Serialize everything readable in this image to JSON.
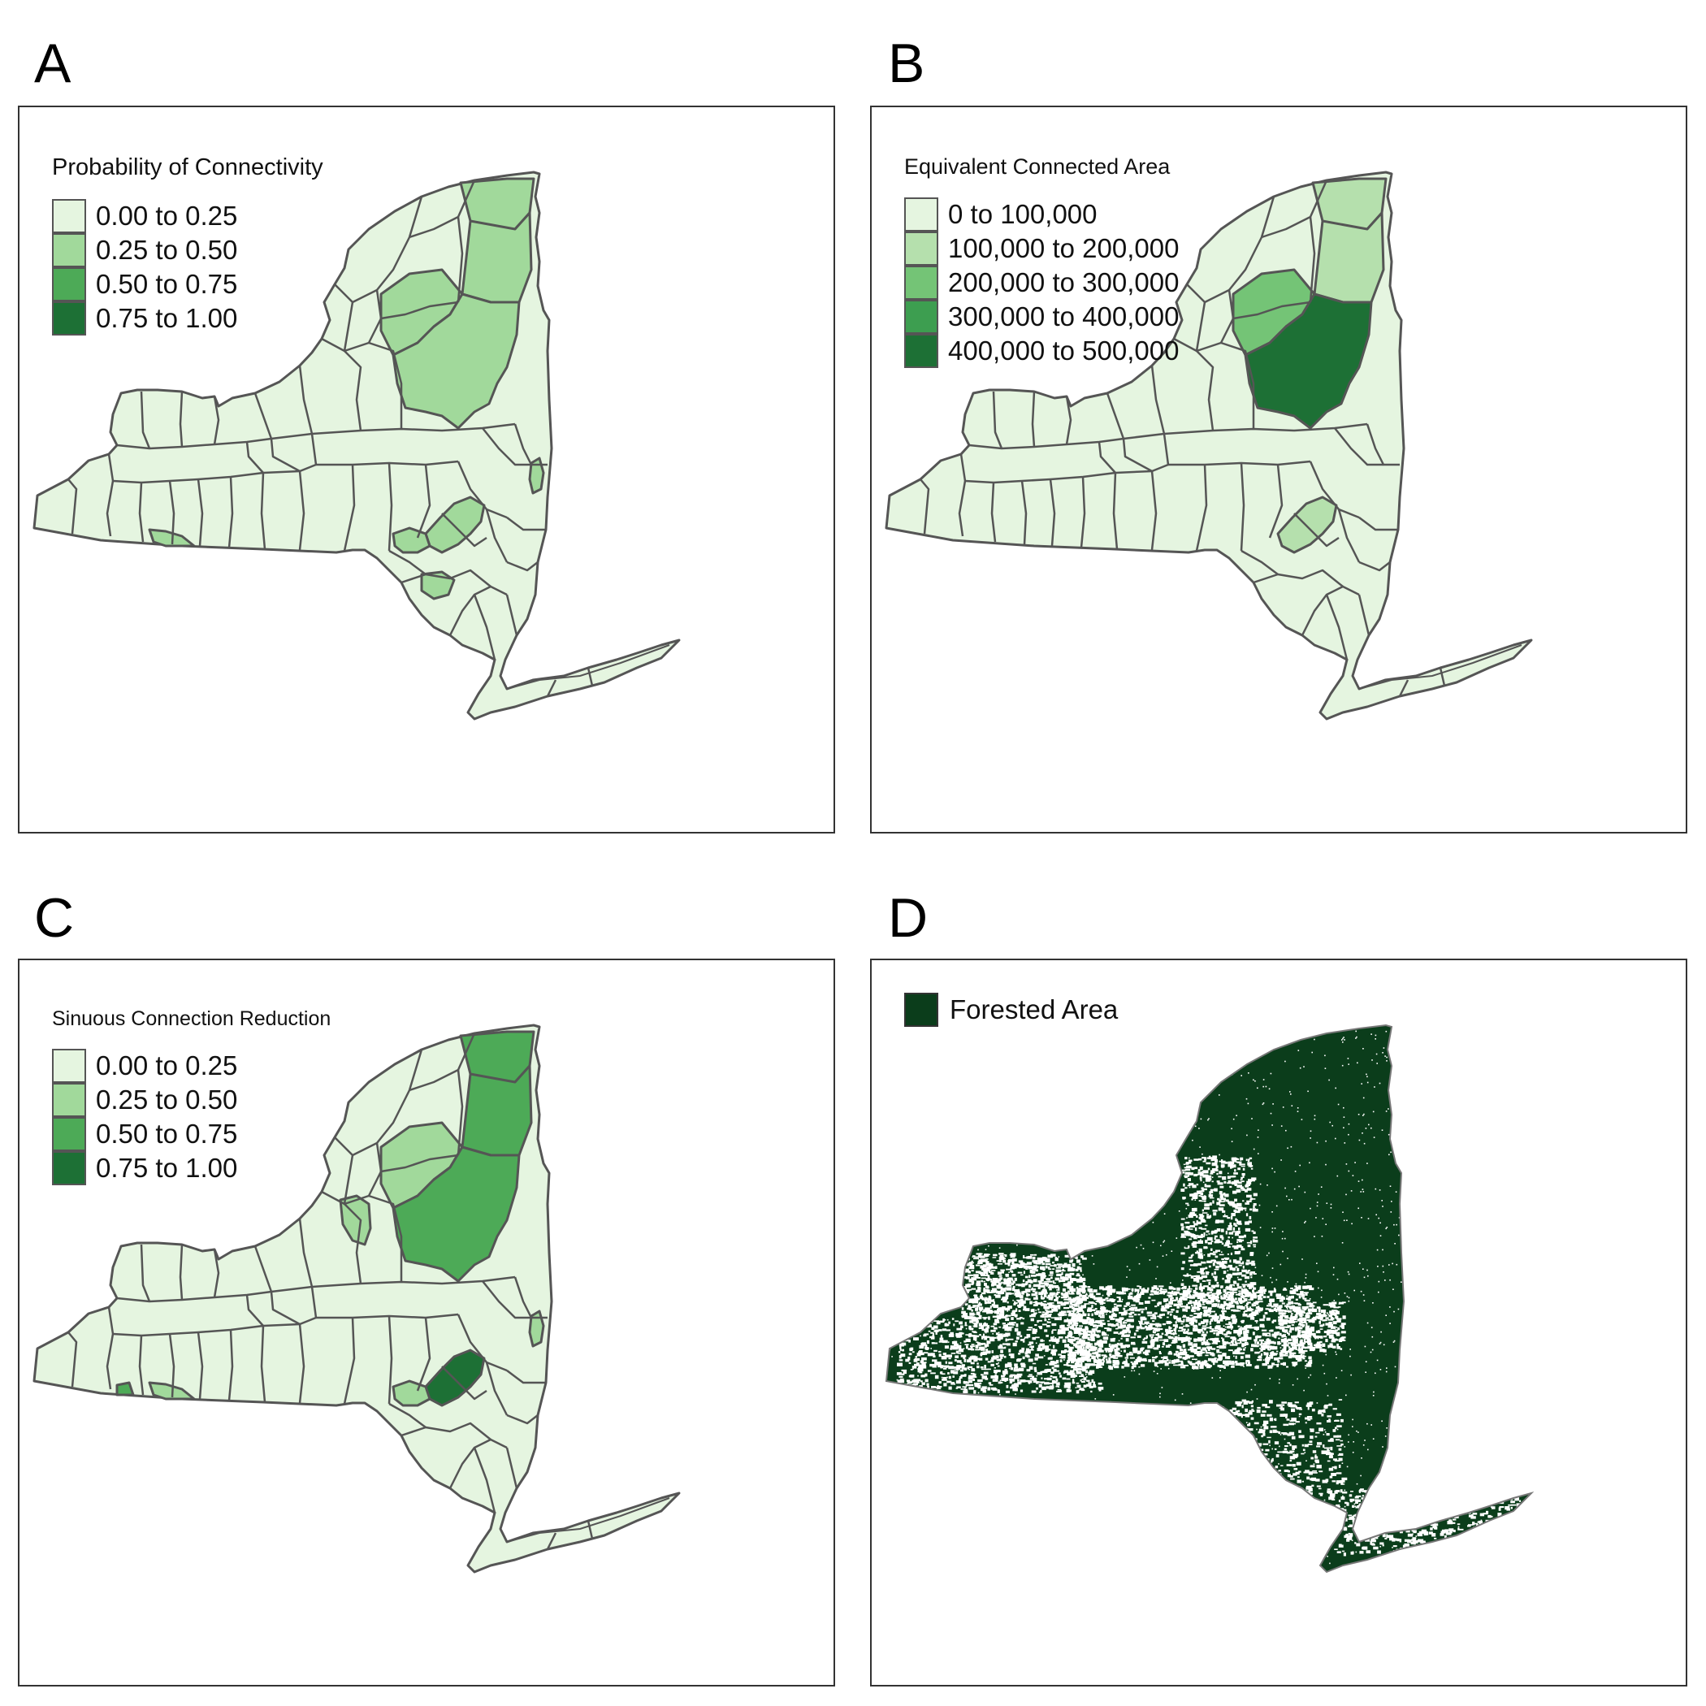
{
  "colors": {
    "c0": "#e5f5e0",
    "c1": "#a1d99b",
    "c2": "#74c476",
    "c3": "#41ab5d",
    "c4": "#238b45",
    "c5": "#1a6e2f",
    "forest": "#0b3d1b",
    "border": "#555555"
  },
  "panels": {
    "a": {
      "letter": "A",
      "legend_title": "Probability of Connectivity",
      "legend": [
        {
          "label": "0.00 to 0.25",
          "color": "#e5f5e0"
        },
        {
          "label": "0.25 to 0.50",
          "color": "#a1d99b"
        },
        {
          "label": "0.50 to 0.75",
          "color": "#4daa57"
        },
        {
          "label": "0.75 to 1.00",
          "color": "#1d7035"
        }
      ]
    },
    "b": {
      "letter": "B",
      "legend_title": "Equivalent Connected Area",
      "legend": [
        {
          "label": "0 to 100,000",
          "color": "#e5f5e0"
        },
        {
          "label": "100,000 to 200,000",
          "color": "#b5e0ad"
        },
        {
          "label": "200,000 to 300,000",
          "color": "#74c476"
        },
        {
          "label": "300,000 to 400,000",
          "color": "#3d9e50"
        },
        {
          "label": "400,000 to 500,000",
          "color": "#1d7035"
        }
      ]
    },
    "c": {
      "letter": "C",
      "legend_title": "Sinuous Connection Reduction",
      "legend": [
        {
          "label": "0.00 to 0.25",
          "color": "#e5f5e0"
        },
        {
          "label": "0.25 to 0.50",
          "color": "#a1d99b"
        },
        {
          "label": "0.50 to 0.75",
          "color": "#4daa57"
        },
        {
          "label": "0.75 to 1.00",
          "color": "#1d7035"
        }
      ]
    },
    "d": {
      "letter": "D",
      "legend_label": "Forested Area",
      "legend_color": "#0b3d1b"
    }
  }
}
